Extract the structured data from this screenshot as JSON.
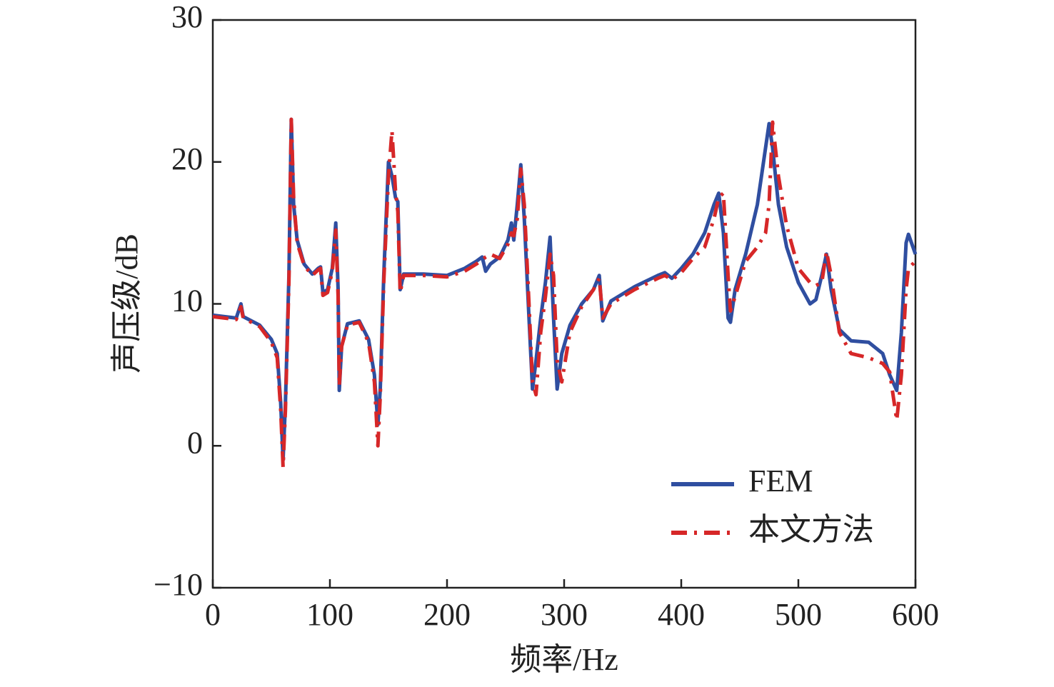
{
  "chart_data": {
    "type": "line",
    "xlabel": "频率/Hz",
    "ylabel": "声压级/dB",
    "xlim": [
      0,
      600
    ],
    "ylim": [
      -10,
      30
    ],
    "xticks": [
      0,
      100,
      200,
      300,
      400,
      500,
      600
    ],
    "yticks": [
      {
        "value": -10,
        "label": "−10"
      },
      0,
      10,
      20,
      30
    ],
    "legend": "lower right",
    "x": [
      0,
      20,
      24,
      26,
      40,
      50,
      55,
      58,
      60,
      62,
      65,
      67,
      69,
      72,
      78,
      85,
      90,
      92,
      94,
      98,
      102,
      105,
      107,
      108,
      110,
      115,
      125,
      133,
      138,
      141,
      143,
      146,
      150,
      153,
      156,
      158,
      160,
      163,
      180,
      200,
      215,
      225,
      230,
      233,
      237,
      245,
      252,
      255,
      257,
      260,
      263,
      266,
      270,
      273,
      276,
      280,
      284,
      288,
      291,
      294,
      298,
      305,
      315,
      325,
      330,
      333,
      340,
      360,
      380,
      386,
      392,
      400,
      410,
      420,
      428,
      432,
      436,
      440,
      442,
      446,
      455,
      465,
      472,
      475,
      478,
      483,
      490,
      500,
      510,
      515,
      520,
      524,
      528,
      535,
      545,
      560,
      572,
      578,
      584,
      588,
      592,
      594,
      600
    ],
    "series": [
      {
        "name": "FEM",
        "color": "#2f4ea0",
        "style": "solid",
        "values": [
          9.2,
          9.0,
          10.0,
          9.1,
          8.5,
          7.5,
          6.5,
          3,
          -1,
          3,
          12,
          23,
          17,
          14.5,
          12.8,
          12.1,
          12.5,
          12.6,
          10.8,
          11,
          12.5,
          15.7,
          11,
          3.9,
          7,
          8.6,
          8.8,
          7.5,
          5,
          1.5,
          4,
          12,
          20,
          19,
          17.5,
          17.2,
          11,
          12.1,
          12.1,
          12.0,
          12.5,
          13,
          13.3,
          12.3,
          12.8,
          13.3,
          14.5,
          15.7,
          14.5,
          17,
          19.8,
          16,
          9,
          4,
          6,
          9,
          11.5,
          14.7,
          9,
          4,
          6.5,
          8.5,
          10,
          11,
          12,
          8.8,
          10.2,
          11.2,
          12,
          12.2,
          11.8,
          12.5,
          13.5,
          15,
          17,
          17.8,
          15,
          9,
          8.7,
          11,
          13.5,
          17,
          21,
          22.7,
          21,
          17,
          14,
          11.5,
          10,
          10.3,
          12,
          13.5,
          11,
          8.2,
          7.4,
          7.3,
          6.5,
          5,
          3.9,
          8,
          14.3,
          14.9,
          13.5
        ]
      },
      {
        "name": "本文方法",
        "color": "#d62728",
        "style": "dashdot",
        "values": [
          9.1,
          8.9,
          9.8,
          9.0,
          8.4,
          7.3,
          6.2,
          2.5,
          -1.5,
          2.5,
          11.5,
          23,
          17.5,
          14.3,
          12.7,
          12.0,
          12.4,
          12.5,
          10.6,
          10.8,
          12.3,
          15.2,
          10.5,
          4.2,
          7,
          8.5,
          8.7,
          7.3,
          4.5,
          0,
          3.5,
          11.5,
          19,
          22.2,
          18,
          16.5,
          10.8,
          12.0,
          12.0,
          11.9,
          12.3,
          12.8,
          13.1,
          13.3,
          13.5,
          13.2,
          14.2,
          15,
          14.8,
          16,
          19.5,
          17,
          10,
          4.5,
          3.6,
          8,
          10.5,
          13.5,
          12,
          6,
          4.5,
          8,
          9.8,
          11,
          11.8,
          9.0,
          10,
          11,
          11.8,
          12,
          11.7,
          12.2,
          13.2,
          14,
          16,
          17.5,
          17.8,
          12,
          9.5,
          10.5,
          13,
          14,
          15,
          17,
          22.8,
          19,
          15.5,
          12.5,
          11.5,
          11.3,
          11.5,
          13.7,
          12,
          8,
          6.5,
          6.2,
          5.8,
          5.2,
          1.8,
          5,
          11,
          12.5,
          13
        ]
      }
    ]
  }
}
